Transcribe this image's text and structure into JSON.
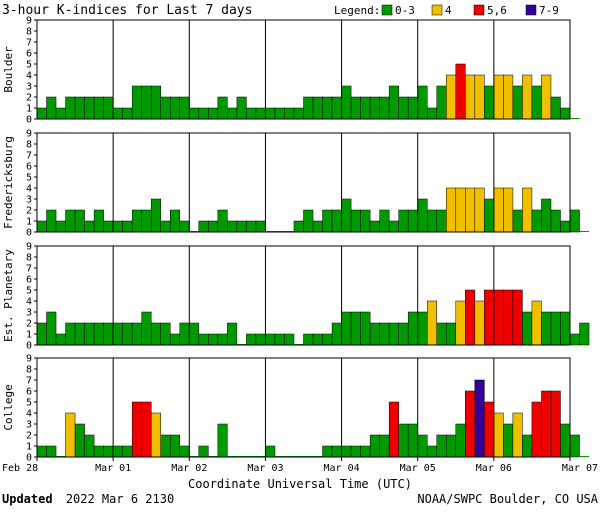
{
  "chart_data": {
    "type": "bar",
    "title": "3-hour K-indices for Last 7 days",
    "legend": {
      "title": "Legend:",
      "entries": [
        {
          "label": "0-3",
          "color": "#009900"
        },
        {
          "label": "4",
          "color": "#f0c000"
        },
        {
          "label": "5,6",
          "color": "#ee0000"
        },
        {
          "label": "7-9",
          "color": "#330099"
        }
      ]
    },
    "xlabel": "Coordinate Universal Time (UTC)",
    "x_tick_labels": [
      "Feb 28",
      "Mar 01",
      "Mar 02",
      "Mar 03",
      "Mar 04",
      "Mar 05",
      "Mar 06",
      "Mar 07"
    ],
    "ylim": [
      0,
      9
    ],
    "y_ticks": [
      0,
      1,
      2,
      3,
      4,
      5,
      6,
      7,
      8,
      9
    ],
    "bins_per_day": 8,
    "series": [
      {
        "name": "Boulder",
        "values": [
          1,
          2,
          1,
          2,
          2,
          2,
          2,
          2,
          1,
          1,
          3,
          3,
          3,
          2,
          2,
          2,
          1,
          1,
          1,
          2,
          1,
          2,
          1,
          1,
          1,
          1,
          1,
          1,
          2,
          2,
          2,
          2,
          3,
          2,
          2,
          2,
          2,
          3,
          2,
          2,
          3,
          1,
          3,
          4,
          5,
          4,
          4,
          3,
          4,
          4,
          3,
          4,
          3,
          4,
          2,
          1,
          0
        ]
      },
      {
        "name": "Fredericksburg",
        "values": [
          1,
          2,
          1,
          2,
          2,
          1,
          2,
          1,
          1,
          1,
          2,
          2,
          3,
          1,
          2,
          1,
          0,
          1,
          1,
          2,
          1,
          1,
          1,
          1,
          0,
          0,
          0,
          1,
          2,
          1,
          2,
          2,
          3,
          2,
          2,
          1,
          2,
          1,
          2,
          2,
          3,
          2,
          2,
          4,
          4,
          4,
          4,
          3,
          4,
          4,
          2,
          4,
          2,
          3,
          2,
          1,
          2,
          0
        ]
      },
      {
        "name": "Est. Planetary",
        "values": [
          2,
          3,
          1,
          2,
          2,
          2,
          2,
          2,
          2,
          2,
          2,
          3,
          2,
          2,
          1,
          2,
          2,
          1,
          1,
          1,
          2,
          0,
          1,
          1,
          1,
          1,
          1,
          0,
          1,
          1,
          1,
          2,
          3,
          3,
          3,
          2,
          2,
          2,
          2,
          3,
          3,
          4,
          2,
          2,
          4,
          5,
          4,
          5,
          5,
          5,
          5,
          3,
          4,
          3,
          3,
          3,
          1,
          2
        ]
      },
      {
        "name": "College",
        "values": [
          1,
          1,
          0,
          4,
          3,
          2,
          1,
          1,
          1,
          1,
          5,
          5,
          4,
          2,
          2,
          1,
          0,
          1,
          0,
          3,
          0,
          0,
          0,
          0,
          1,
          0,
          0,
          0,
          0,
          0,
          1,
          1,
          1,
          1,
          1,
          2,
          2,
          5,
          3,
          3,
          2,
          1,
          2,
          2,
          3,
          6,
          7,
          5,
          4,
          3,
          4,
          2,
          5,
          6,
          6,
          3,
          2,
          0
        ]
      }
    ]
  },
  "footer": {
    "updated_label": "Updated",
    "updated_time": "2022 Mar  6 2130",
    "source": "NOAA/SWPC Boulder, CO USA"
  }
}
